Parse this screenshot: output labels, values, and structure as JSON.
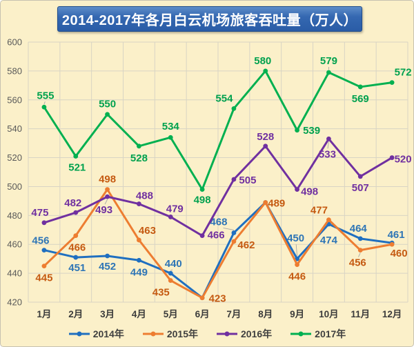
{
  "title": "2014-2017年各月白云机场旅客吞吐量（万人）",
  "colors": {
    "background": "#FBF0C9",
    "banner_blue": "#2A5CA6",
    "gridline": "#D8D4C4",
    "axis_text": "#595959",
    "month_text": "#3B3B3B",
    "legend_text": "#3F3F3F"
  },
  "chart_data": {
    "type": "line",
    "title": "2014-2017年各月白云机场旅客吞吐量（万人）",
    "xlabel": "",
    "ylabel": "",
    "ylim": [
      420,
      600
    ],
    "ytick_step": 20,
    "y_ticks": [
      600,
      580,
      560,
      540,
      520,
      500,
      480,
      460,
      440,
      420
    ],
    "grid": true,
    "legend_position": "bottom",
    "categories": [
      "1月",
      "2月",
      "3月",
      "4月",
      "5月",
      "6月",
      "7月",
      "8月",
      "9月",
      "10月",
      "11月",
      "12月"
    ],
    "series": [
      {
        "name": "2014年",
        "color": "#1F6FC0",
        "label_color": "#2E75B6",
        "values": [
          456,
          451,
          452,
          449,
          440,
          423,
          468,
          489,
          450,
          474,
          464,
          461
        ]
      },
      {
        "name": "2015年",
        "color": "#ED7D31",
        "label_color": "#C55A11",
        "values": [
          445,
          466,
          498,
          463,
          435,
          423,
          462,
          489,
          446,
          477,
          456,
          460
        ]
      },
      {
        "name": "2016年",
        "color": "#7030A0",
        "label_color": "#7030A0",
        "values": [
          475,
          482,
          493,
          488,
          479,
          466,
          505,
          528,
          498,
          533,
          507,
          520
        ]
      },
      {
        "name": "2017年",
        "color": "#00B050",
        "label_color": "#00A14E",
        "values": [
          555,
          521,
          550,
          528,
          534,
          498,
          554,
          580,
          539,
          579,
          569,
          572
        ]
      }
    ]
  }
}
